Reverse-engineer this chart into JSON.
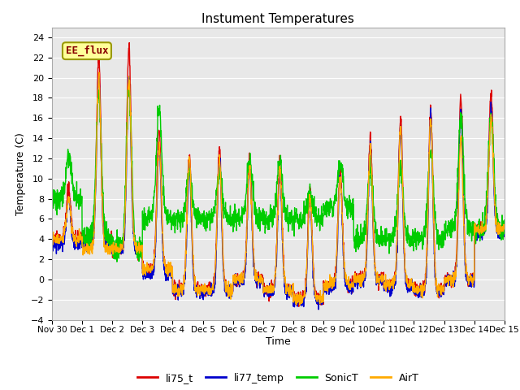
{
  "title": "Instument Temperatures",
  "xlabel": "Time",
  "ylabel": "Temperature (C)",
  "ylim": [
    -4,
    25
  ],
  "yticks": [
    -4,
    -2,
    0,
    2,
    4,
    6,
    8,
    10,
    12,
    14,
    16,
    18,
    20,
    22,
    24
  ],
  "x_labels": [
    "Nov 30",
    "Dec 1",
    "Dec 2",
    "Dec 3",
    "Dec 4",
    "Dec 5",
    "Dec 6",
    "Dec 7",
    "Dec 8",
    "Dec 9",
    "Dec 10",
    "Dec 11",
    "Dec 12",
    "Dec 13",
    "Dec 14",
    "Dec 15"
  ],
  "series": {
    "li75_t": {
      "color": "#dd0000",
      "lw": 1.0
    },
    "li77_temp": {
      "color": "#0000cc",
      "lw": 1.0
    },
    "SonicT": {
      "color": "#00cc00",
      "lw": 1.0
    },
    "AirT": {
      "color": "#ffaa00",
      "lw": 1.0
    }
  },
  "annotation": {
    "text": "EE_flux",
    "facecolor": "#ffff99",
    "edgecolor": "#999900",
    "textcolor": "#880000"
  },
  "plot_bg_color": "#e8e8e8",
  "grid_color": "#ffffff"
}
